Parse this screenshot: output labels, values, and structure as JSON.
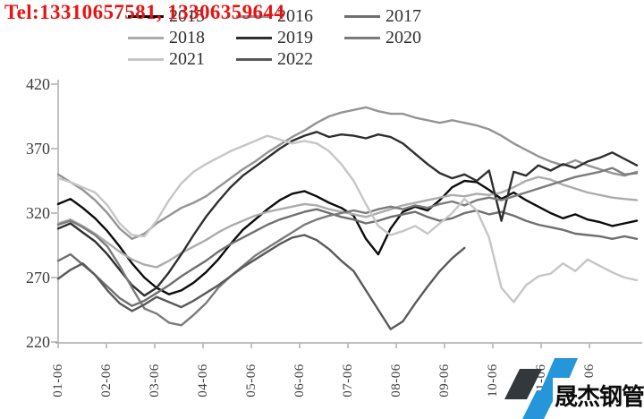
{
  "header": {
    "tel": "Tel:13310657581, 13306359644"
  },
  "logo": {
    "text": "晟杰钢管",
    "blue": "#2496d9",
    "dark": "#33383d"
  },
  "style": {
    "axis_color": "#999999",
    "tick_text_color": "#3c3c3c",
    "tel_red": "#e91111"
  },
  "chart_data": {
    "type": "line",
    "title": "",
    "xlabel": "",
    "ylabel": "",
    "ylim": [
      220,
      420
    ],
    "y_ticks": [
      220,
      270,
      320,
      370,
      420
    ],
    "x_labels": [
      "01-06",
      "02-06",
      "03-06",
      "04-06",
      "05-06",
      "06-06",
      "07-06",
      "08-06",
      "09-06",
      "10-06",
      "11-06",
      "12-06"
    ],
    "grid": false,
    "legend_position": "top",
    "x_note": "48 weekly points per series, Jan 6 through Dec 29",
    "series": [
      {
        "name": "2015",
        "color": "#0b0b0b",
        "values": [
          327,
          331,
          324,
          316,
          306,
          294,
          281,
          270,
          262,
          257,
          260,
          266,
          274,
          284,
          296,
          307,
          315,
          323,
          330,
          335,
          337,
          333,
          328,
          324,
          318,
          300,
          288,
          308,
          321,
          325,
          322,
          330,
          340,
          345,
          344,
          338,
          331,
          336,
          330,
          325,
          320,
          316,
          319,
          315,
          313,
          310,
          312,
          314
        ]
      },
      {
        "name": "2016",
        "color": "#949494",
        "values": [
          350,
          344,
          338,
          330,
          320,
          308,
          300,
          304,
          312,
          318,
          324,
          328,
          333,
          340,
          347,
          354,
          360,
          367,
          373,
          379,
          384,
          390,
          395,
          398,
          400,
          402,
          399,
          397,
          397,
          394,
          392,
          390,
          392,
          390,
          388,
          385,
          380,
          374,
          369,
          364,
          360,
          357,
          361,
          357,
          354,
          351,
          349,
          352
        ]
      },
      {
        "name": "2017",
        "color": "#6f6f6f",
        "values": [
          283,
          288,
          280,
          272,
          263,
          254,
          248,
          252,
          258,
          264,
          271,
          277,
          283,
          290,
          296,
          301,
          306,
          311,
          315,
          318,
          321,
          323,
          320,
          317,
          315,
          312,
          314,
          317,
          319,
          321,
          317,
          314,
          316,
          320,
          322,
          319,
          321,
          318,
          314,
          311,
          309,
          307,
          304,
          303,
          302,
          300,
          302,
          300
        ]
      },
      {
        "name": "2018",
        "color": "#acacac",
        "values": [
          312,
          315,
          310,
          304,
          297,
          290,
          284,
          280,
          278,
          283,
          289,
          294,
          299,
          305,
          310,
          314,
          318,
          321,
          323,
          325,
          327,
          326,
          323,
          321,
          319,
          317,
          320,
          323,
          326,
          328,
          330,
          332,
          334,
          333,
          335,
          334,
          336,
          340,
          345,
          348,
          346,
          342,
          339,
          336,
          334,
          332,
          331,
          330
        ]
      },
      {
        "name": "2019",
        "color": "#2e2e2e",
        "values": [
          308,
          312,
          305,
          298,
          288,
          276,
          264,
          256,
          262,
          274,
          288,
          303,
          317,
          329,
          340,
          349,
          356,
          363,
          370,
          376,
          380,
          383,
          379,
          381,
          380,
          378,
          381,
          379,
          374,
          366,
          358,
          351,
          347,
          350,
          345,
          353,
          314,
          352,
          349,
          357,
          353,
          358,
          355,
          360,
          363,
          367,
          362,
          357
        ]
      },
      {
        "name": "2020",
        "color": "#7b7b7b",
        "values": [
          311,
          314,
          309,
          303,
          294,
          279,
          262,
          246,
          242,
          235,
          233,
          241,
          250,
          262,
          271,
          279,
          287,
          293,
          299,
          305,
          311,
          315,
          318,
          320,
          322,
          320,
          323,
          325,
          323,
          326,
          324,
          327,
          329,
          326,
          330,
          332,
          330,
          333,
          336,
          339,
          342,
          345,
          348,
          350,
          352,
          355,
          350,
          351
        ]
      },
      {
        "name": "2021",
        "color": "#c6c6c6",
        "values": [
          347,
          344,
          340,
          336,
          326,
          312,
          303,
          302,
          314,
          330,
          343,
          352,
          358,
          363,
          368,
          372,
          376,
          380,
          377,
          374,
          376,
          374,
          368,
          358,
          345,
          327,
          310,
          303,
          306,
          310,
          304,
          312,
          320,
          331,
          322,
          301,
          262,
          251,
          264,
          271,
          273,
          281,
          275,
          284,
          279,
          274,
          270,
          268
        ]
      },
      {
        "name": "2022",
        "color": "#595959",
        "values": [
          269,
          276,
          281,
          272,
          260,
          250,
          244,
          249,
          255,
          251,
          247,
          252,
          258,
          264,
          271,
          278,
          284,
          290,
          296,
          301,
          303,
          299,
          292,
          283,
          275,
          260,
          245,
          230,
          236,
          250,
          263,
          275,
          285,
          293,
          null,
          null,
          null,
          null,
          null,
          null,
          null,
          null,
          null,
          null,
          null,
          null,
          null,
          null
        ]
      }
    ]
  }
}
